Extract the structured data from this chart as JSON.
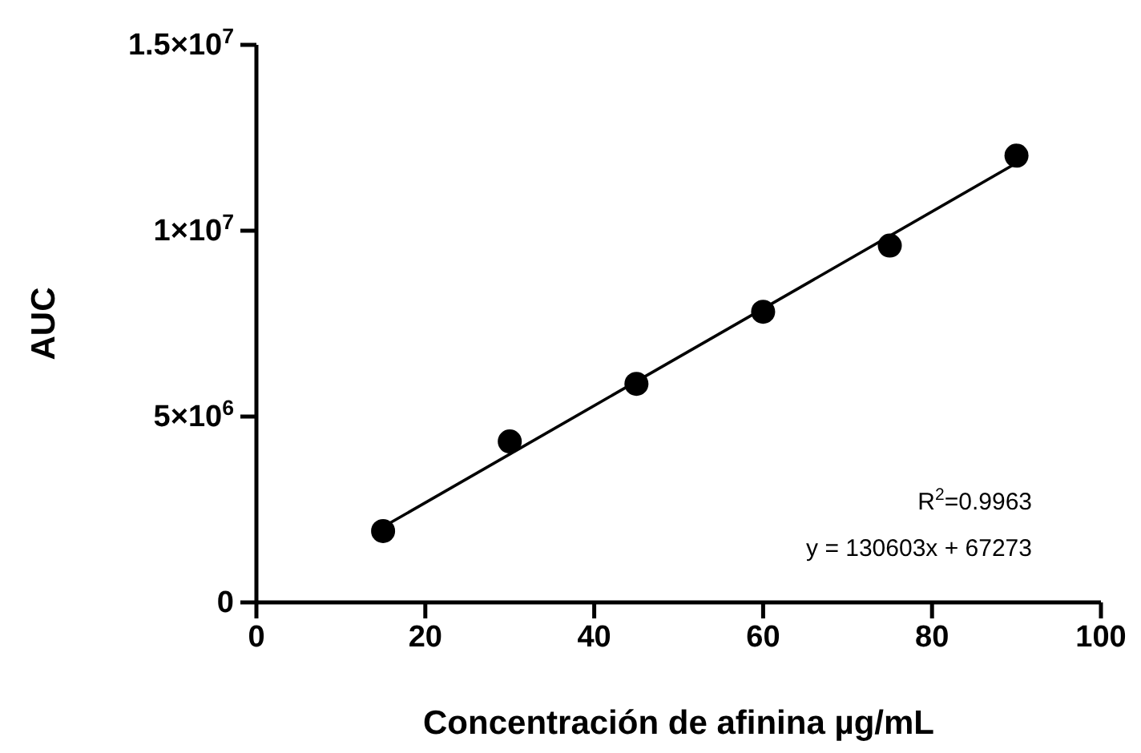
{
  "chart_data": {
    "type": "scatter",
    "xlabel": "Concentración de afinina µg/mL",
    "ylabel": "AUC",
    "x": [
      15,
      30,
      45,
      60,
      75,
      90
    ],
    "series": [
      {
        "color": "#000000",
        "values": [
          1920000,
          4330000,
          5880000,
          7820000,
          9600000,
          12020000
        ],
        "marker": "circle"
      },
      {
        "type": "line",
        "color": "#000000",
        "x": [
          15,
          90
        ],
        "values": [
          2030000,
          11820000
        ]
      }
    ],
    "xlim": [
      0,
      100
    ],
    "xticks": [
      0,
      20,
      40,
      60,
      80,
      100
    ],
    "ylim": [
      0,
      15000000
    ],
    "yticks": [
      {
        "value": 0,
        "label": "0"
      },
      {
        "value": 5000000,
        "label": "5×10$^{6}$"
      },
      {
        "value": 10000000,
        "label": "1×10$^{7}$"
      },
      {
        "value": 15000000,
        "label": "1.5×10$^{7}$"
      }
    ],
    "annotations": [
      "R$^{2}$=0.9963",
      "y = 130603x + 67273"
    ],
    "grid": false
  }
}
